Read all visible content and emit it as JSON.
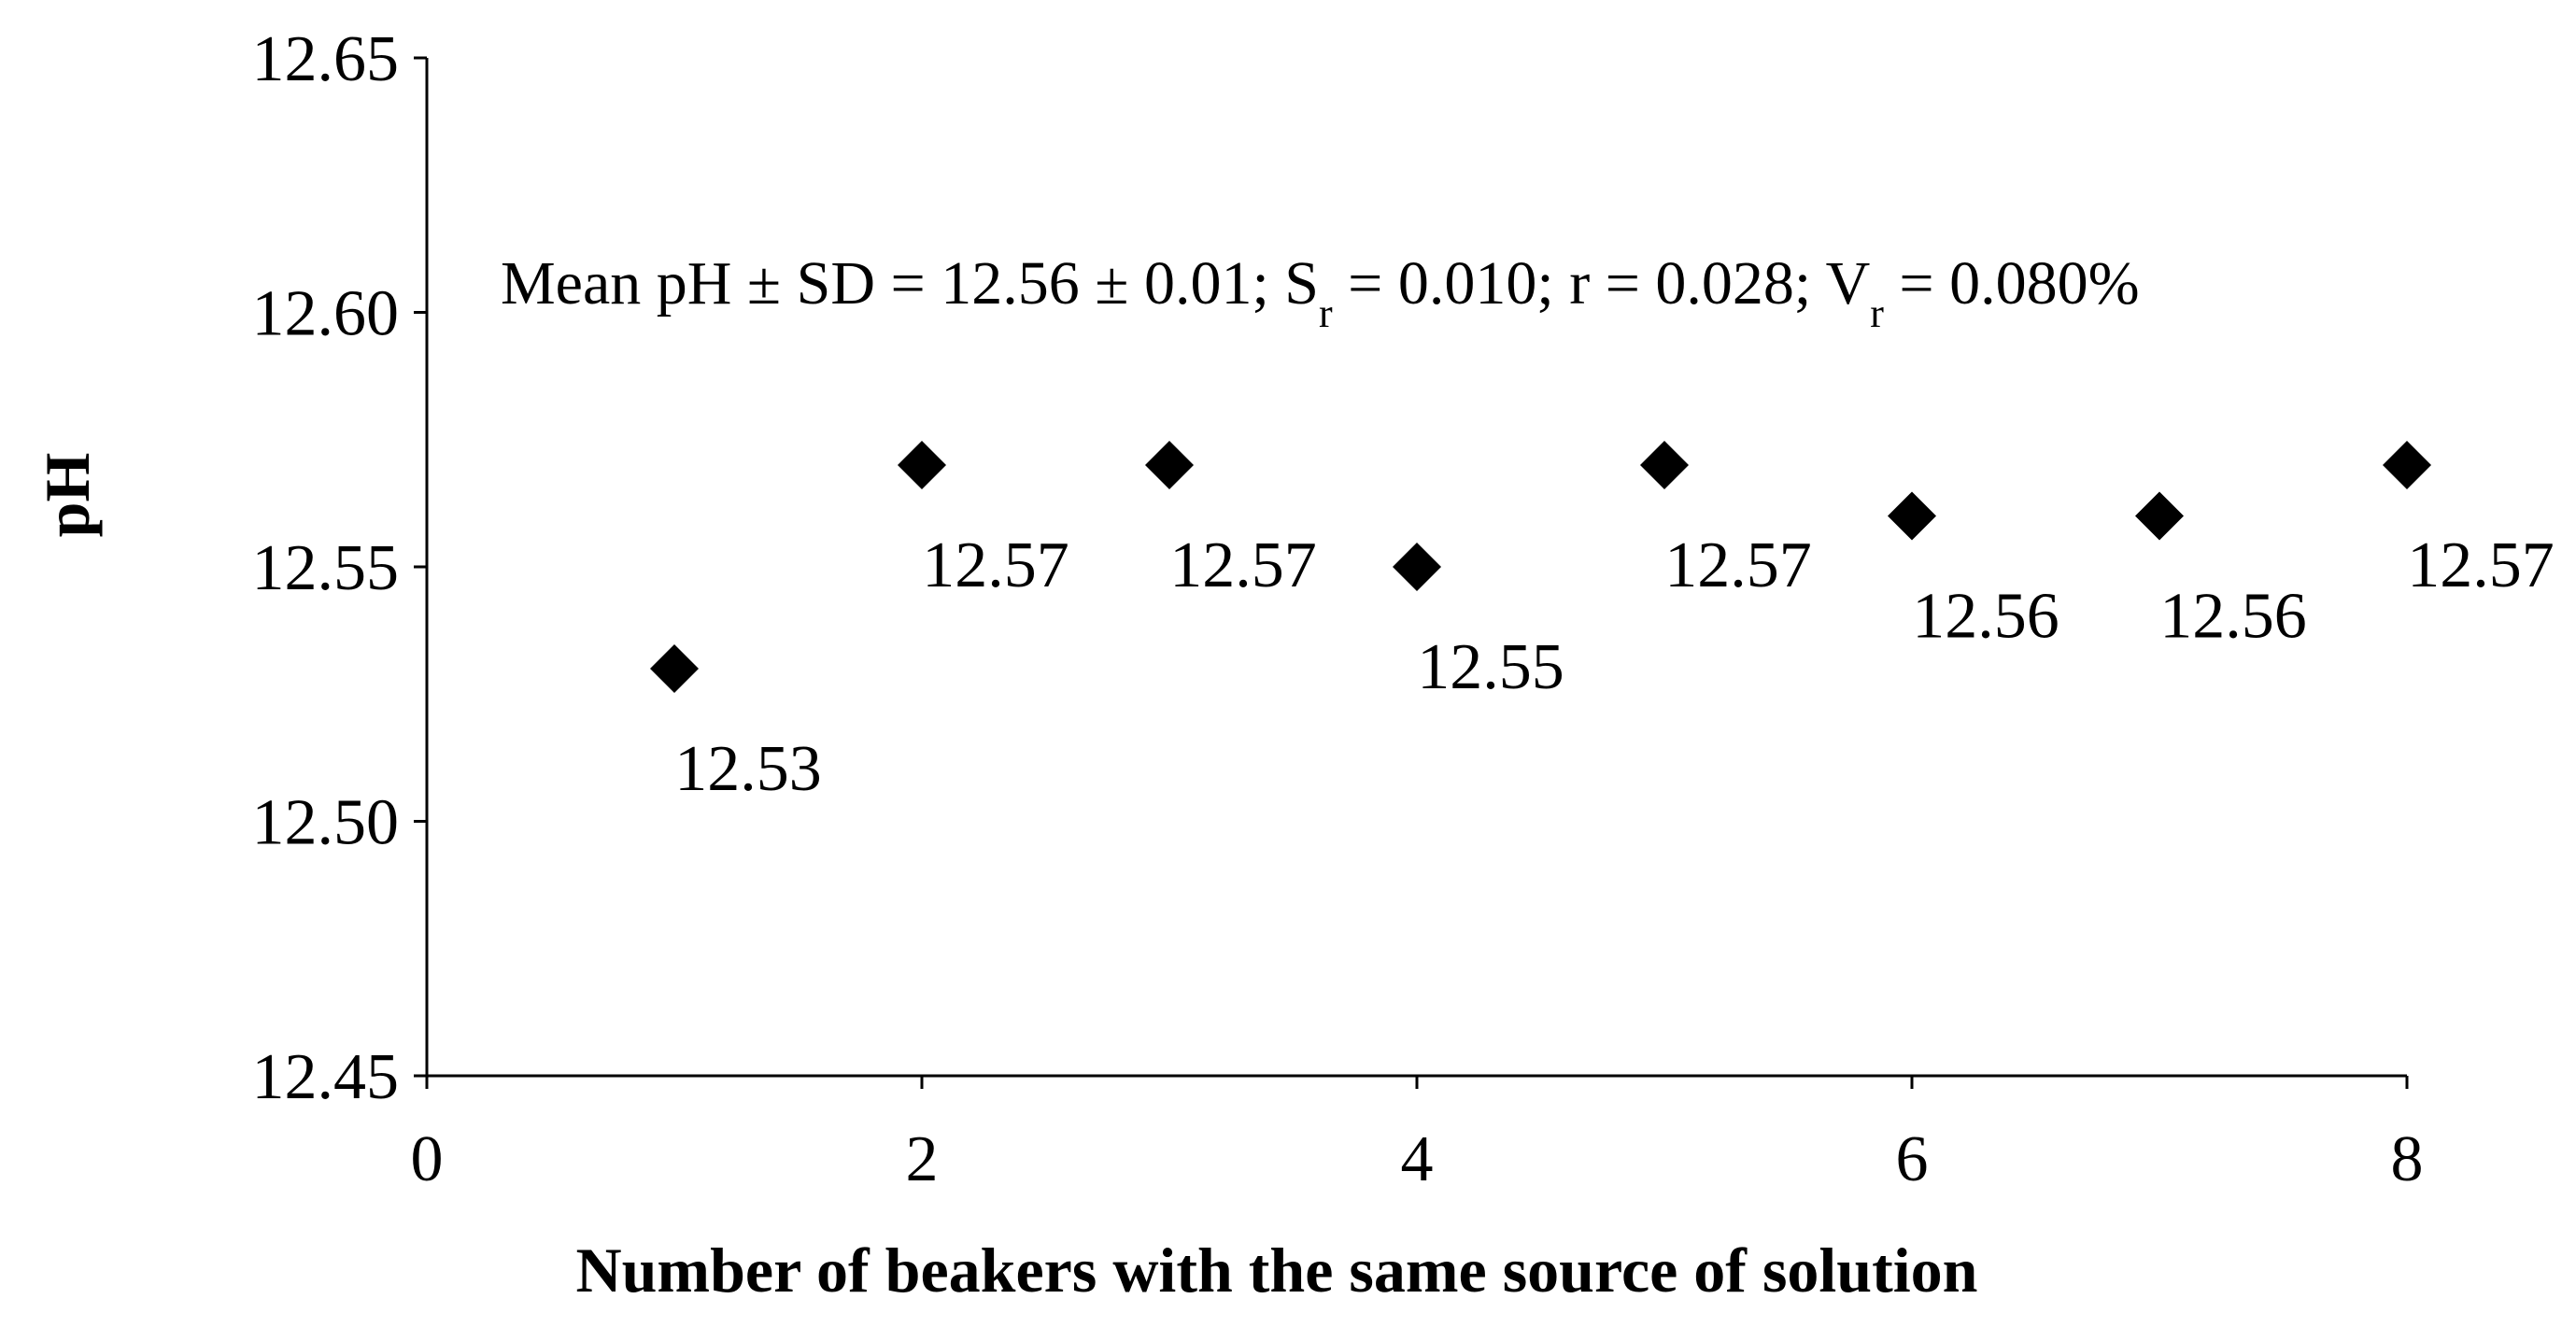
{
  "chart_data": {
    "type": "scatter",
    "xlabel": "Number of beakers with the same source of solution",
    "ylabel": "pH",
    "annotation": [
      "Mean pH ± SD = 12.56 ± 0.01; S",
      "r",
      " = 0.010; r = 0.028; V",
      "r",
      " = 0.080%"
    ],
    "x": [
      1,
      2,
      3,
      4,
      5,
      6,
      7,
      8
    ],
    "values": [
      12.53,
      12.57,
      12.57,
      12.55,
      12.57,
      12.56,
      12.56,
      12.57
    ],
    "color": "#000000",
    "xlim": [
      0,
      8
    ],
    "xticks": [
      0,
      2,
      4,
      6,
      8
    ],
    "ylim": [
      12.45,
      12.65
    ],
    "yticks": [
      12.45,
      {
        "value": 12.5,
        "label": "12.50"
      },
      12.55,
      {
        "value": 12.6,
        "label": "12.60"
      },
      12.65
    ],
    "grid": false
  }
}
